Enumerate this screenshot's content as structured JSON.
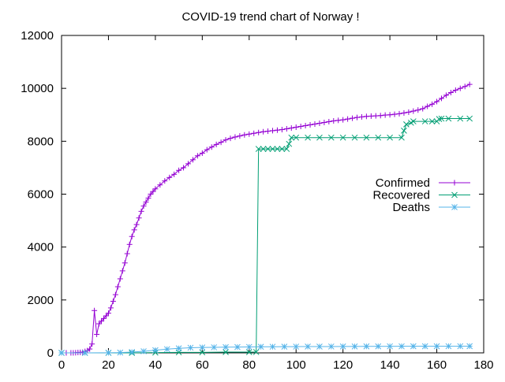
{
  "chart_data": {
    "type": "line",
    "title": "COVID-19 trend chart of Norway !",
    "xlabel": "",
    "ylabel": "",
    "xlim": [
      0,
      180
    ],
    "ylim": [
      0,
      12000
    ],
    "x_ticks": [
      0,
      20,
      40,
      60,
      80,
      100,
      120,
      140,
      160,
      180
    ],
    "y_ticks": [
      0,
      2000,
      4000,
      6000,
      8000,
      10000,
      12000
    ],
    "grid": false,
    "legend_position": "right",
    "series": [
      {
        "name": "Confirmed",
        "color": "#9400d3",
        "marker": "plus",
        "points": [
          [
            0,
            0
          ],
          [
            2,
            0
          ],
          [
            4,
            1
          ],
          [
            5,
            1
          ],
          [
            6,
            6
          ],
          [
            7,
            15
          ],
          [
            8,
            19
          ],
          [
            9,
            25
          ],
          [
            10,
            56
          ],
          [
            11,
            86
          ],
          [
            12,
            147
          ],
          [
            13,
            335
          ],
          [
            14,
            1600
          ],
          [
            15,
            700
          ],
          [
            16,
            1100
          ],
          [
            17,
            1200
          ],
          [
            18,
            1300
          ],
          [
            19,
            1400
          ],
          [
            20,
            1500
          ],
          [
            21,
            1700
          ],
          [
            22,
            1950
          ],
          [
            23,
            2200
          ],
          [
            24,
            2500
          ],
          [
            25,
            2800
          ],
          [
            26,
            3100
          ],
          [
            27,
            3400
          ],
          [
            28,
            3750
          ],
          [
            29,
            4100
          ],
          [
            30,
            4400
          ],
          [
            31,
            4650
          ],
          [
            32,
            4850
          ],
          [
            33,
            5100
          ],
          [
            34,
            5350
          ],
          [
            35,
            5550
          ],
          [
            36,
            5700
          ],
          [
            37,
            5850
          ],
          [
            38,
            6000
          ],
          [
            39,
            6100
          ],
          [
            40,
            6200
          ],
          [
            42,
            6350
          ],
          [
            44,
            6500
          ],
          [
            46,
            6630
          ],
          [
            48,
            6750
          ],
          [
            50,
            6900
          ],
          [
            52,
            7000
          ],
          [
            54,
            7150
          ],
          [
            56,
            7300
          ],
          [
            58,
            7450
          ],
          [
            60,
            7550
          ],
          [
            62,
            7680
          ],
          [
            64,
            7780
          ],
          [
            66,
            7880
          ],
          [
            68,
            7960
          ],
          [
            70,
            8050
          ],
          [
            72,
            8110
          ],
          [
            74,
            8160
          ],
          [
            76,
            8200
          ],
          [
            78,
            8240
          ],
          [
            80,
            8270
          ],
          [
            82,
            8300
          ],
          [
            84,
            8330
          ],
          [
            86,
            8360
          ],
          [
            88,
            8380
          ],
          [
            90,
            8400
          ],
          [
            92,
            8420
          ],
          [
            94,
            8440
          ],
          [
            96,
            8470
          ],
          [
            98,
            8500
          ],
          [
            100,
            8530
          ],
          [
            102,
            8560
          ],
          [
            104,
            8590
          ],
          [
            106,
            8620
          ],
          [
            108,
            8650
          ],
          [
            110,
            8680
          ],
          [
            112,
            8710
          ],
          [
            114,
            8740
          ],
          [
            116,
            8770
          ],
          [
            118,
            8790
          ],
          [
            120,
            8810
          ],
          [
            122,
            8840
          ],
          [
            124,
            8870
          ],
          [
            126,
            8900
          ],
          [
            128,
            8920
          ],
          [
            130,
            8940
          ],
          [
            132,
            8950
          ],
          [
            134,
            8960
          ],
          [
            136,
            8970
          ],
          [
            138,
            8990
          ],
          [
            140,
            9000
          ],
          [
            142,
            9020
          ],
          [
            144,
            9040
          ],
          [
            146,
            9070
          ],
          [
            148,
            9100
          ],
          [
            150,
            9140
          ],
          [
            152,
            9180
          ],
          [
            154,
            9230
          ],
          [
            156,
            9320
          ],
          [
            158,
            9400
          ],
          [
            160,
            9500
          ],
          [
            162,
            9620
          ],
          [
            164,
            9740
          ],
          [
            166,
            9840
          ],
          [
            168,
            9930
          ],
          [
            170,
            10000
          ],
          [
            172,
            10070
          ],
          [
            174,
            10150
          ]
        ]
      },
      {
        "name": "Recovered",
        "color": "#009e73",
        "marker": "x",
        "points": [
          [
            0,
            0
          ],
          [
            10,
            0
          ],
          [
            20,
            0
          ],
          [
            30,
            0
          ],
          [
            40,
            10
          ],
          [
            50,
            20
          ],
          [
            60,
            20
          ],
          [
            70,
            30
          ],
          [
            80,
            30
          ],
          [
            83,
            32
          ],
          [
            84,
            7710
          ],
          [
            86,
            7710
          ],
          [
            88,
            7710
          ],
          [
            90,
            7710
          ],
          [
            92,
            7710
          ],
          [
            94,
            7710
          ],
          [
            96,
            7710
          ],
          [
            97,
            7900
          ],
          [
            98,
            8138
          ],
          [
            100,
            8138
          ],
          [
            105,
            8138
          ],
          [
            110,
            8138
          ],
          [
            115,
            8138
          ],
          [
            120,
            8138
          ],
          [
            125,
            8138
          ],
          [
            130,
            8138
          ],
          [
            135,
            8138
          ],
          [
            140,
            8138
          ],
          [
            145,
            8138
          ],
          [
            146,
            8400
          ],
          [
            147,
            8640
          ],
          [
            149,
            8700
          ],
          [
            150,
            8752
          ],
          [
            155,
            8752
          ],
          [
            158,
            8752
          ],
          [
            160,
            8752
          ],
          [
            161,
            8840
          ],
          [
            162,
            8857
          ],
          [
            165,
            8857
          ],
          [
            170,
            8857
          ],
          [
            174,
            8857
          ]
        ]
      },
      {
        "name": "Deaths",
        "color": "#56b4e9",
        "marker": "star",
        "points": [
          [
            0,
            0
          ],
          [
            10,
            0
          ],
          [
            20,
            3
          ],
          [
            25,
            10
          ],
          [
            30,
            30
          ],
          [
            35,
            60
          ],
          [
            40,
            100
          ],
          [
            45,
            140
          ],
          [
            50,
            170
          ],
          [
            55,
            195
          ],
          [
            60,
            205
          ],
          [
            65,
            210
          ],
          [
            70,
            215
          ],
          [
            75,
            220
          ],
          [
            80,
            225
          ],
          [
            85,
            230
          ],
          [
            90,
            232
          ],
          [
            95,
            235
          ],
          [
            100,
            236
          ],
          [
            105,
            237
          ],
          [
            110,
            238
          ],
          [
            115,
            240
          ],
          [
            120,
            242
          ],
          [
            125,
            243
          ],
          [
            130,
            245
          ],
          [
            135,
            246
          ],
          [
            140,
            247
          ],
          [
            145,
            248
          ],
          [
            150,
            249
          ],
          [
            155,
            249
          ],
          [
            160,
            250
          ],
          [
            165,
            251
          ],
          [
            170,
            251
          ],
          [
            174,
            252
          ]
        ]
      }
    ]
  }
}
